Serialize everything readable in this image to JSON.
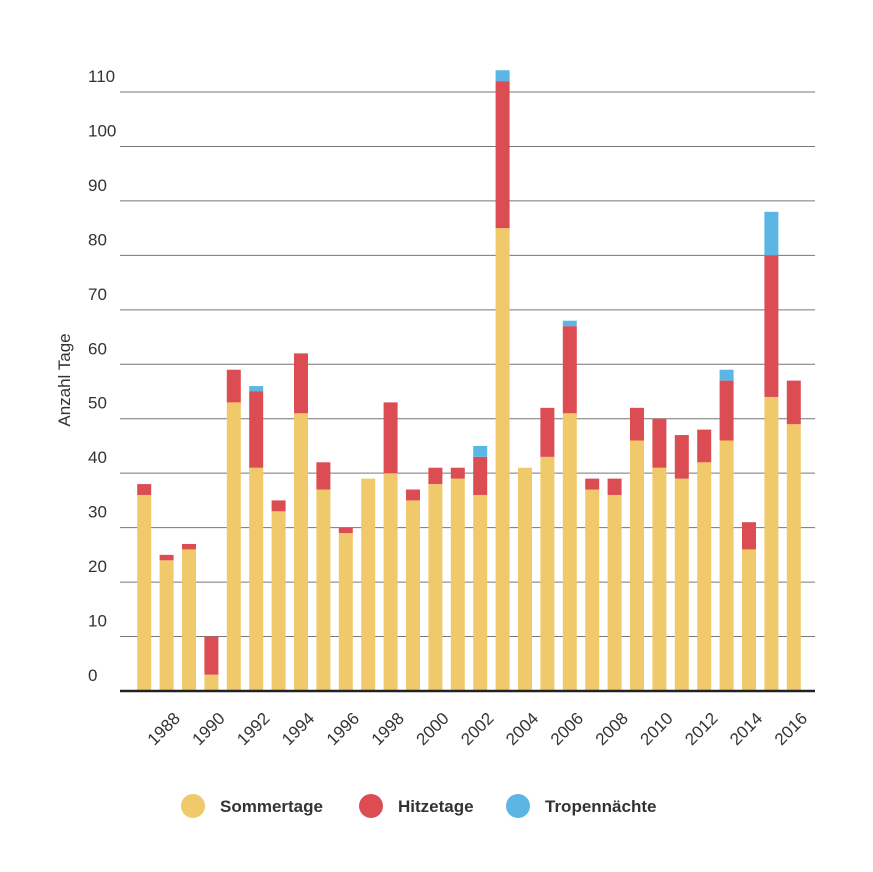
{
  "chart_data": {
    "type": "stacked-bar",
    "y_label": "Anzahl Tage",
    "categories": [
      null,
      "1988",
      null,
      "1990",
      null,
      "1992",
      null,
      "1994",
      null,
      "1996",
      null,
      "1998",
      null,
      "2000",
      null,
      "2002",
      null,
      "2004",
      null,
      "2006",
      null,
      "2008",
      null,
      "2010",
      null,
      "2012",
      null,
      "2014",
      null,
      "2016"
    ],
    "series": [
      {
        "name": "Sommertage",
        "color": "#f0c96a",
        "values": [
          36,
          24,
          26,
          3,
          53,
          41,
          33,
          51,
          37,
          29,
          39,
          40,
          35,
          38,
          39,
          36,
          85,
          41,
          43,
          51,
          37,
          36,
          46,
          41,
          39,
          42,
          46,
          26,
          54,
          49
        ]
      },
      {
        "name": "Hitzetage",
        "color": "#db4c53",
        "values": [
          2,
          1,
          1,
          7,
          6,
          14,
          2,
          11,
          5,
          1,
          0,
          13,
          2,
          3,
          2,
          7,
          27,
          0,
          9,
          16,
          2,
          3,
          6,
          9,
          8,
          6,
          11,
          5,
          26,
          8
        ]
      },
      {
        "name": "Tropennächte",
        "color": "#5cb6e3",
        "values": [
          0,
          0,
          0,
          0,
          0,
          1,
          0,
          0,
          0,
          0,
          0,
          0,
          0,
          0,
          0,
          2,
          2,
          0,
          0,
          1,
          0,
          0,
          0,
          0,
          0,
          0,
          2,
          0,
          8,
          0
        ]
      }
    ],
    "ylim": [
      0,
      110
    ],
    "yticks": [
      0,
      10,
      20,
      30,
      40,
      50,
      60,
      70,
      80,
      90,
      100,
      110
    ],
    "grid": true
  }
}
